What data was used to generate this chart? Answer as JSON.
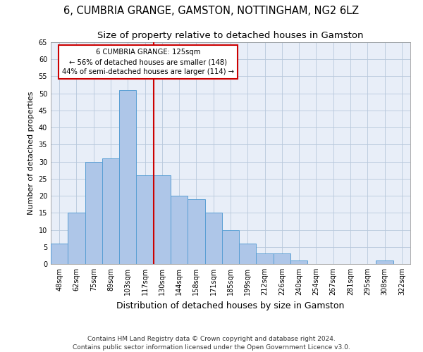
{
  "title1": "6, CUMBRIA GRANGE, GAMSTON, NOTTINGHAM, NG2 6LZ",
  "title2": "Size of property relative to detached houses in Gamston",
  "xlabel": "Distribution of detached houses by size in Gamston",
  "ylabel": "Number of detached properties",
  "bar_labels": [
    "48sqm",
    "62sqm",
    "75sqm",
    "89sqm",
    "103sqm",
    "117sqm",
    "130sqm",
    "144sqm",
    "158sqm",
    "171sqm",
    "185sqm",
    "199sqm",
    "212sqm",
    "226sqm",
    "240sqm",
    "254sqm",
    "267sqm",
    "281sqm",
    "295sqm",
    "308sqm",
    "322sqm"
  ],
  "bar_values": [
    6,
    15,
    30,
    31,
    51,
    26,
    26,
    20,
    19,
    15,
    10,
    6,
    3,
    3,
    1,
    0,
    0,
    0,
    0,
    1,
    0
  ],
  "bar_color": "#aec6e8",
  "bar_edge_color": "#5a9fd4",
  "vline_x": 5.5,
  "vline_color": "#cc0000",
  "annotation_line1": "6 CUMBRIA GRANGE: 125sqm",
  "annotation_line2": "← 56% of detached houses are smaller (148)",
  "annotation_line3": "44% of semi-detached houses are larger (114) →",
  "annotation_box_color": "#ffffff",
  "annotation_box_edge": "#cc0000",
  "ylim": [
    0,
    65
  ],
  "yticks": [
    0,
    5,
    10,
    15,
    20,
    25,
    30,
    35,
    40,
    45,
    50,
    55,
    60,
    65
  ],
  "footnote": "Contains HM Land Registry data © Crown copyright and database right 2024.\nContains public sector information licensed under the Open Government Licence v3.0.",
  "plot_background": "#e8eef8",
  "title1_fontsize": 10.5,
  "title2_fontsize": 9.5,
  "ylabel_fontsize": 8,
  "xlabel_fontsize": 9,
  "footnote_fontsize": 6.5,
  "tick_fontsize": 7
}
